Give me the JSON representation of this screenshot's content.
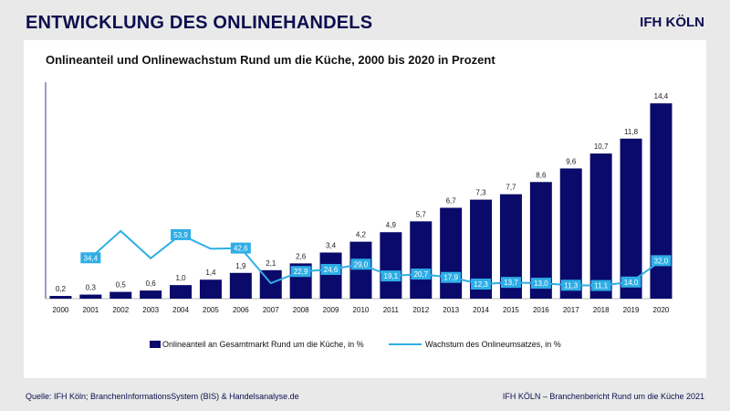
{
  "header": {
    "title": "ENTWICKLUNG DES ONLINEHANDELS",
    "brand": "IFH KÖLN"
  },
  "footer": {
    "source": "Quelle: IFH Köln; BranchenInformationsSystem (BIS) & Handelsanalyse.de",
    "report": "IFH KÖLN – Branchenbericht Rund um die Küche 2021"
  },
  "colors": {
    "bar": "#0a0a6b",
    "line": "#2eaee6",
    "accent_text": "#0d0d4f"
  },
  "chart_data": {
    "type": "bar",
    "title": "Onlineanteil und Onlinewachstum Rund um die Küche, 2000 bis 2020 in Prozent",
    "categories": [
      "2000",
      "2001",
      "2002",
      "2003",
      "2004",
      "2005",
      "2006",
      "2007",
      "2008",
      "2009",
      "2010",
      "2011",
      "2012",
      "2013",
      "2014",
      "2015",
      "2016",
      "2017",
      "2018",
      "2019",
      "2020"
    ],
    "series": [
      {
        "name": "Onlineanteil an Gesamtmarkt Rund um die Küche, in %",
        "type": "bar",
        "values": [
          0.2,
          0.3,
          0.5,
          0.6,
          1.0,
          1.4,
          1.9,
          2.1,
          2.6,
          3.4,
          4.2,
          4.9,
          5.7,
          6.7,
          7.3,
          7.7,
          8.6,
          9.6,
          10.7,
          11.8,
          14.4
        ],
        "labels": [
          "0,2",
          "0,3",
          "0,5",
          "0,6",
          "1,0",
          "1,4",
          "1,9",
          "2,1",
          "2,6",
          "3,4",
          "4,2",
          "4,9",
          "5,7",
          "6,7",
          "7,3",
          "7,7",
          "8,6",
          "9,6",
          "10,7",
          "11,8",
          "14,4"
        ]
      },
      {
        "name": "Wachstum des Onlineumsatzes, in %",
        "type": "line",
        "values": [
          null,
          34.4,
          57,
          34,
          53.9,
          42,
          42.6,
          13,
          22.9,
          24.6,
          29.0,
          19.1,
          20.7,
          17.9,
          12.3,
          13.7,
          13.0,
          11.3,
          11.1,
          14.0,
          32.0
        ],
        "labels": [
          null,
          "34,4",
          null,
          null,
          "53,9",
          null,
          "42,6",
          null,
          "22,9",
          "24,6",
          "29,0",
          "19,1",
          "20,7",
          "17,9",
          "12,3",
          "13,7",
          "13,0",
          "11,3",
          "11,1",
          "14,0",
          "32,0"
        ]
      }
    ],
    "legend_position": "bottom",
    "grid": false
  }
}
